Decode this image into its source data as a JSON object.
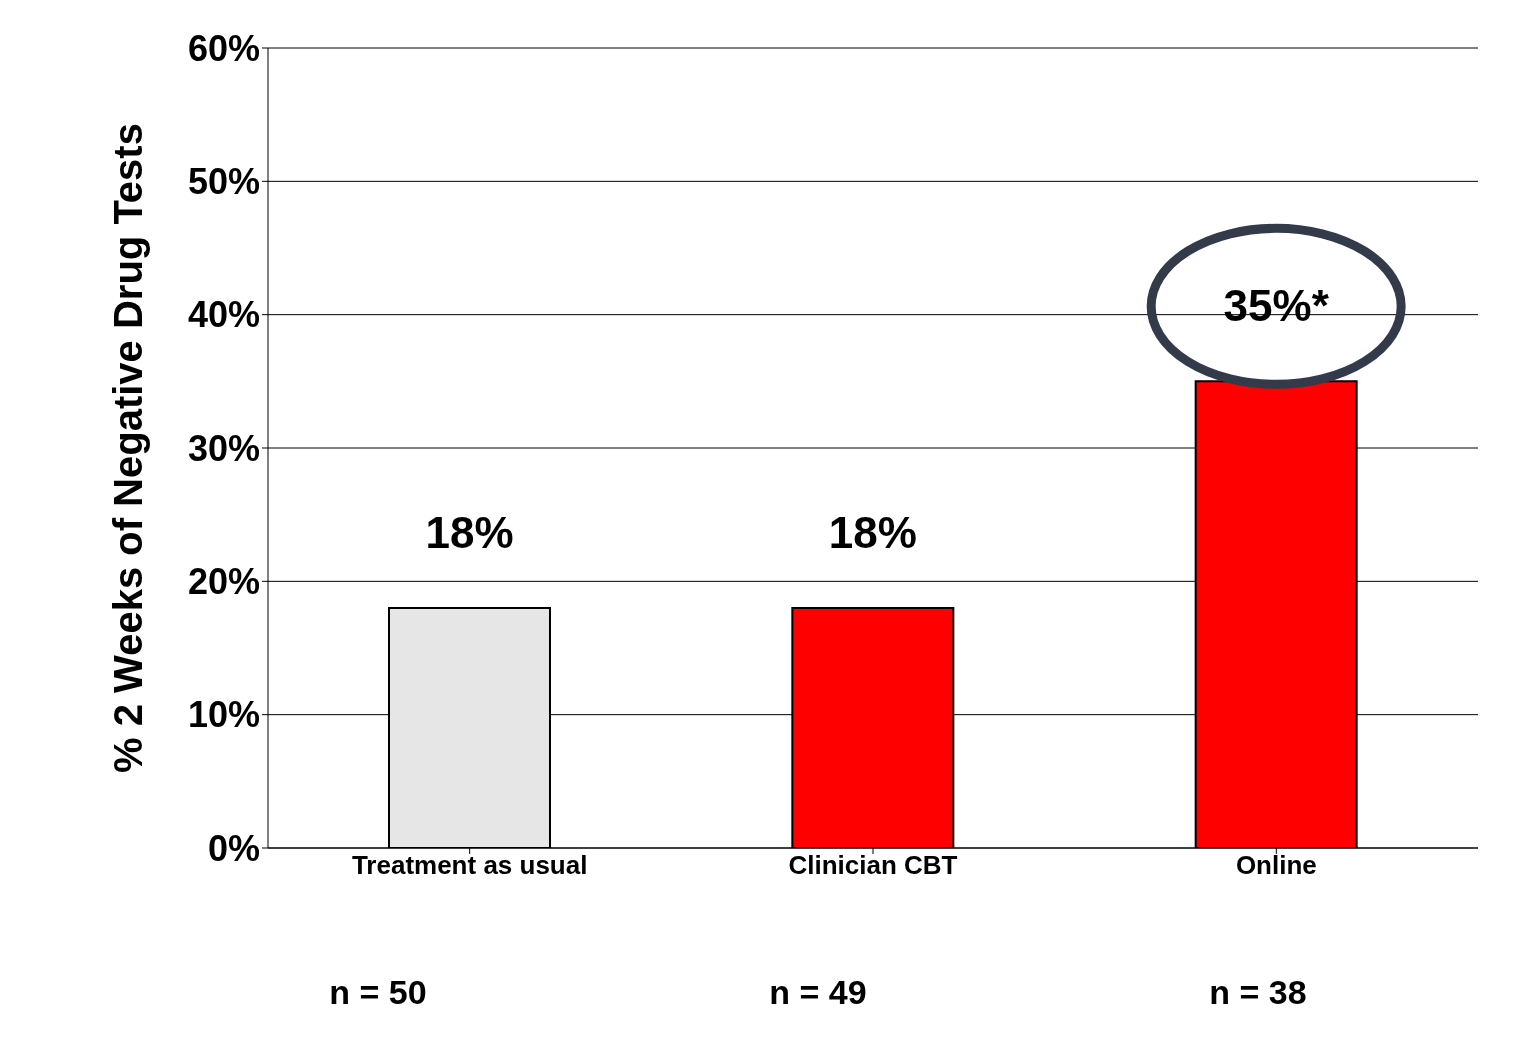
{
  "chart_data": {
    "type": "bar",
    "ylabel": "% 2 Weeks of Negative Drug Tests",
    "categories": [
      "Treatment as usual",
      "Clinician CBT",
      "Online"
    ],
    "values": [
      18,
      18,
      35
    ],
    "colors": [
      "#e6e6e6",
      "#ff0000",
      "#ff0000"
    ],
    "value_labels": [
      "18%",
      "18%",
      "35%*"
    ],
    "ylim": [
      0,
      60
    ],
    "yticks": [
      {
        "value": 0,
        "label": "0%"
      },
      {
        "value": 10,
        "label": "10%"
      },
      {
        "value": 20,
        "label": "20%"
      },
      {
        "value": 30,
        "label": "30%"
      },
      {
        "value": 40,
        "label": "40%"
      },
      {
        "value": 50,
        "label": "50%"
      },
      {
        "value": 60,
        "label": "60%"
      }
    ],
    "grid": "y",
    "legend": false,
    "annotations": [
      "n = 50",
      "n = 49",
      "n = 38"
    ]
  }
}
